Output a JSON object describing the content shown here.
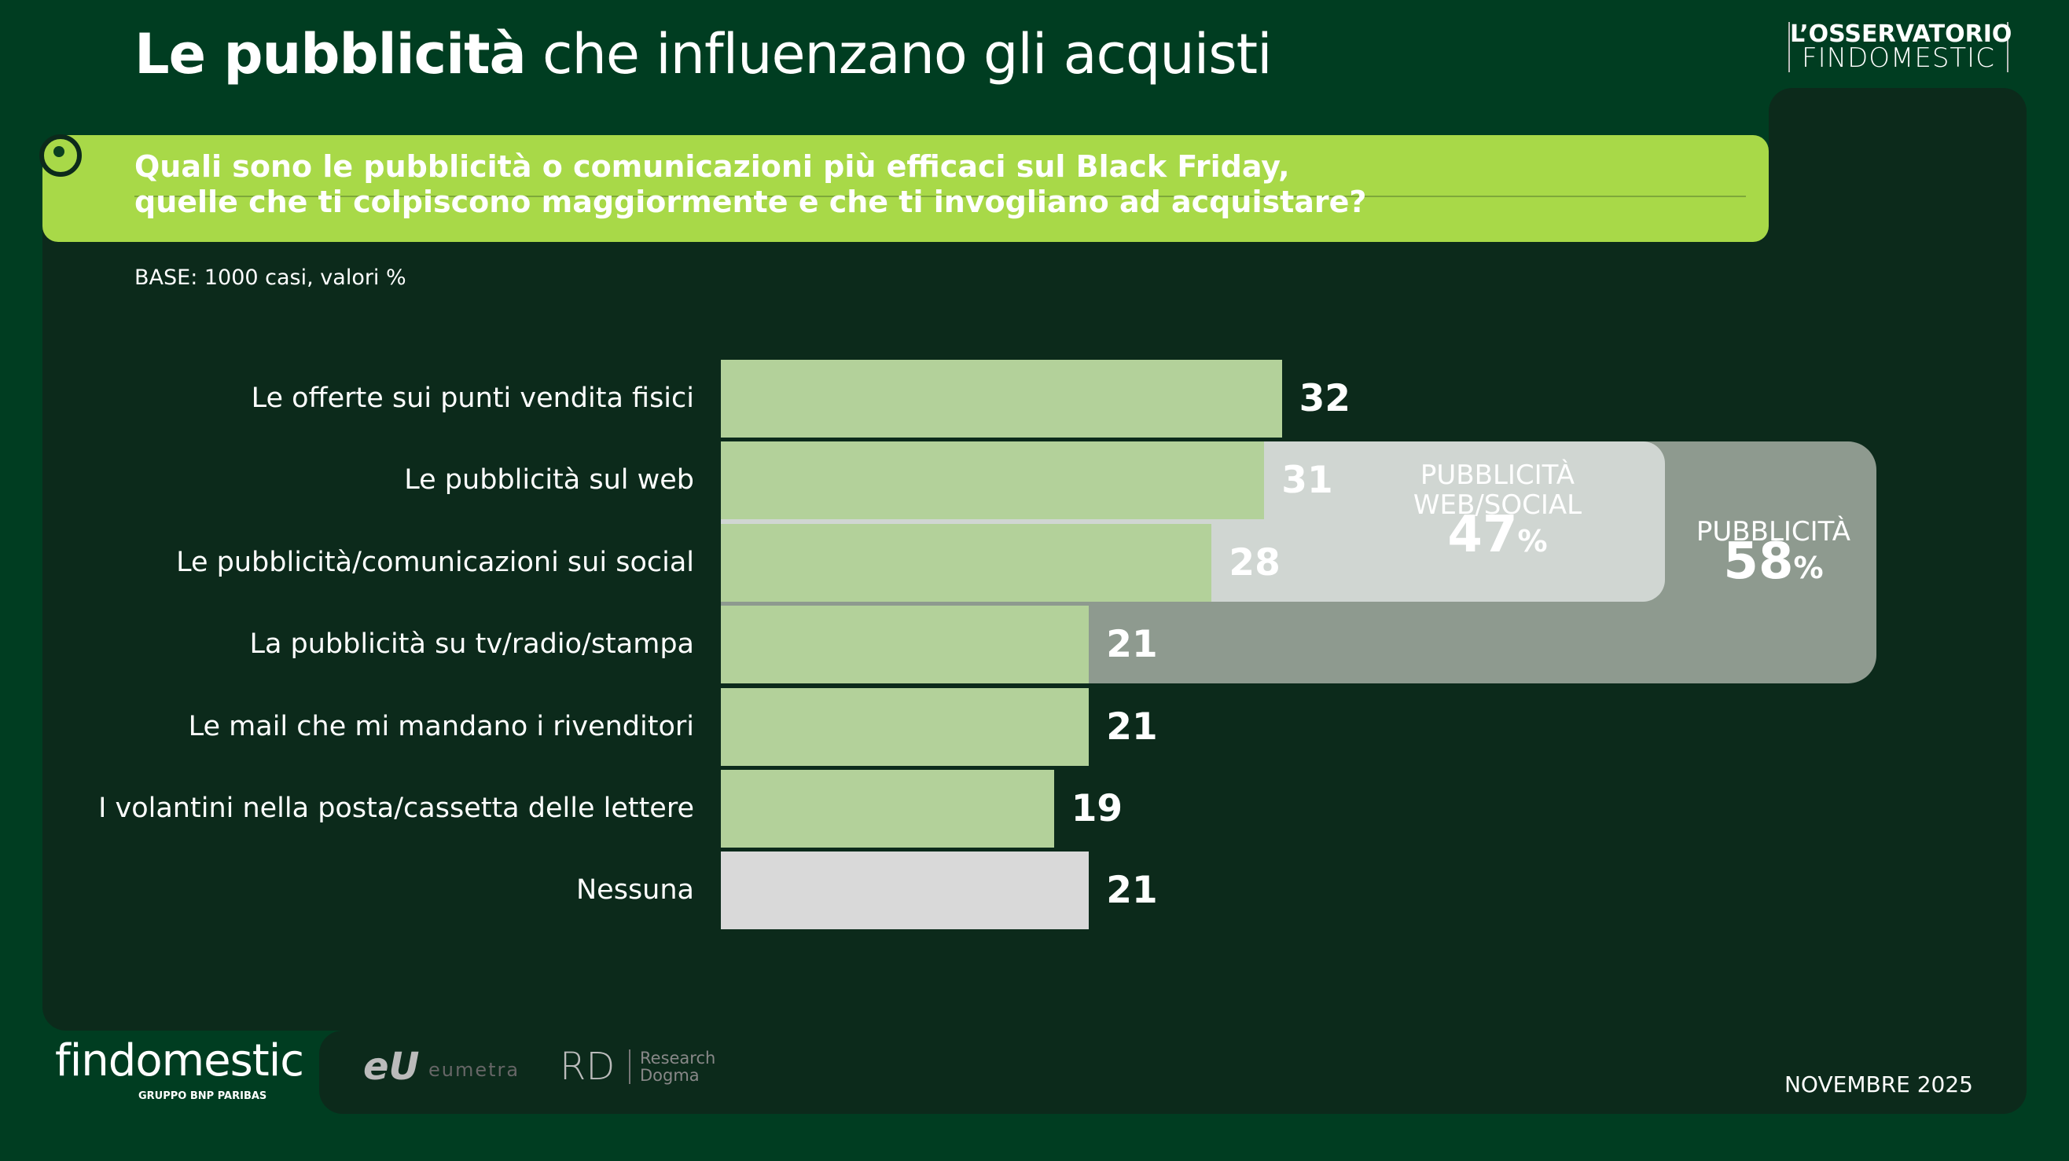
{
  "title": {
    "bold": "Le pubblicità",
    "rest": " che influenzano gli acquisti"
  },
  "logo_top": {
    "line1": "L’OSSERVATORIO",
    "line2": "FINDOMESTIC"
  },
  "question": {
    "line1": "Quali sono le pubblicità o comunicazioni più efficaci sul Black Friday,",
    "line2": "quelle che ti colpiscono maggiormente e che ti invogliano ad acquistare?"
  },
  "base": "BASE: 1000 casi, valori %",
  "groups": {
    "web_social": {
      "label1": "PUBBLICITÀ",
      "label2": "WEB/SOCIAL",
      "value": "47",
      "unit": "%"
    },
    "all": {
      "label": "PUBBLICITÀ",
      "value": "58",
      "unit": "%"
    }
  },
  "colors": {
    "bar": "#b3d19a",
    "none": "#d9d9d9",
    "accent": "#a8d948",
    "background": "#003d21"
  },
  "chart_data": {
    "type": "bar",
    "orientation": "horizontal",
    "unit": "%",
    "categories": [
      "Le offerte sui punti vendita fisici",
      "Le pubblicità sul web",
      "Le pubblicità/comunicazioni sui social",
      "La pubblicità su tv/radio/stampa",
      "Le mail che mi mandano i rivenditori",
      "I volantini nella posta/cassetta delle lettere",
      "Nessuna"
    ],
    "values": [
      32,
      31,
      28,
      21,
      21,
      19,
      21
    ],
    "xlim": [
      0,
      100
    ]
  },
  "footer": {
    "brand": "findomestic",
    "brand_sub": "GRUPPO BNP PARIBAS",
    "partner1_mark": "eU",
    "partner1": "eumetra",
    "partner2_mark": "RD",
    "partner2_line1": "Research",
    "partner2_line2": "Dogma",
    "date": "NOVEMBRE 2025"
  }
}
